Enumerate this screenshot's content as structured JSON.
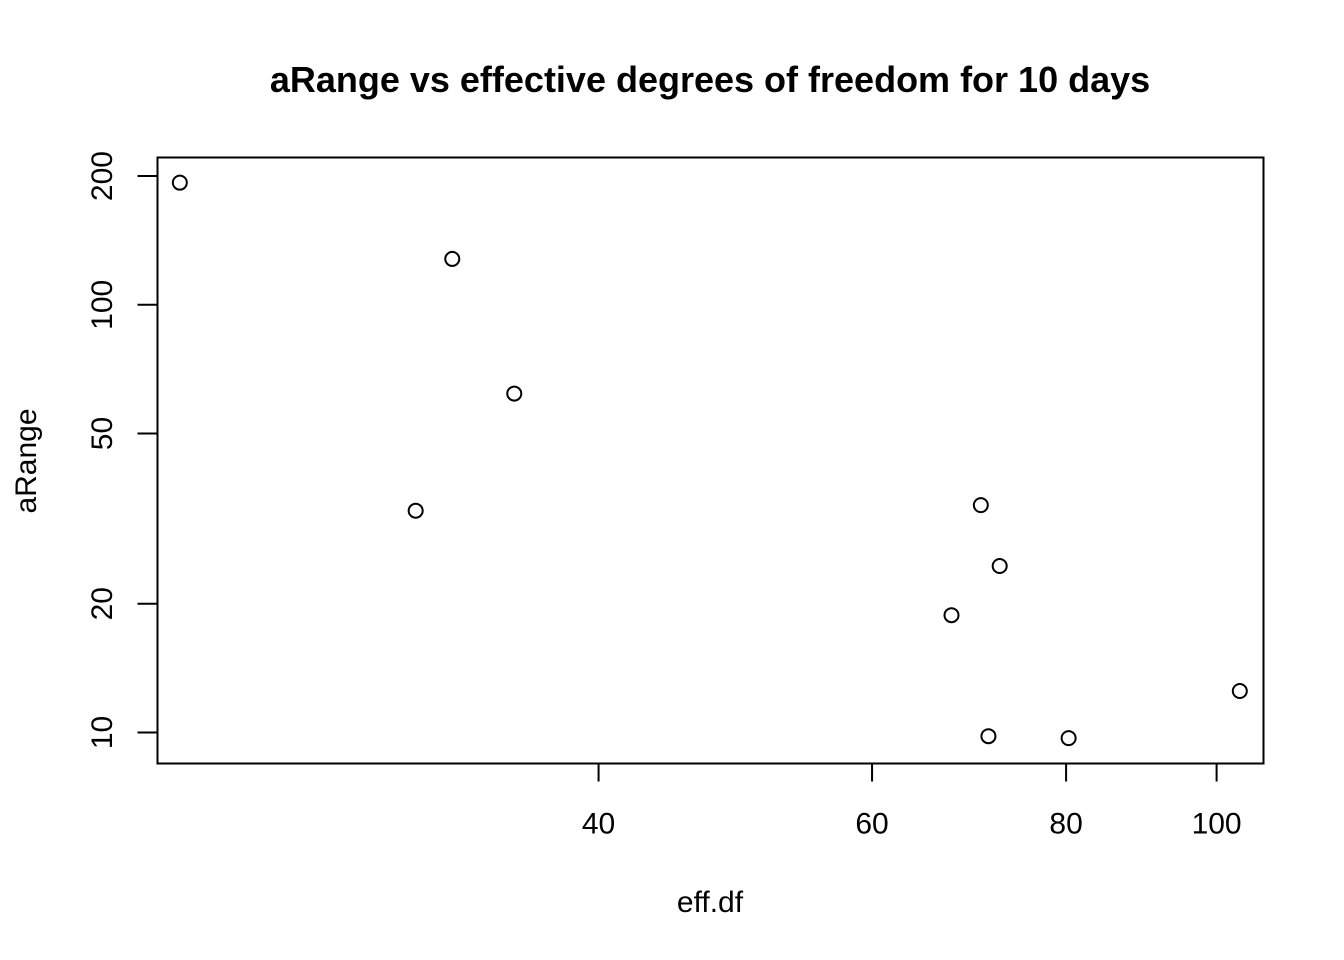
{
  "chart_data": {
    "type": "scatter",
    "title": "aRange vs effective degrees of freedom  for 10 days",
    "xlabel": "eff.df",
    "ylabel": "aRange",
    "x_scale": "log",
    "y_scale": "log",
    "xlim": [
      20.8,
      107.2
    ],
    "ylim": [
      8.46,
      221
    ],
    "x_ticks": [
      40,
      60,
      80,
      100
    ],
    "y_ticks": [
      10,
      20,
      50,
      100,
      200
    ],
    "grid": false,
    "legend": "none",
    "marker": "open-circle",
    "points": [
      {
        "x": 21.5,
        "y": 193
      },
      {
        "x": 32.2,
        "y": 128
      },
      {
        "x": 35.3,
        "y": 62
      },
      {
        "x": 30.5,
        "y": 33
      },
      {
        "x": 67.5,
        "y": 18.8
      },
      {
        "x": 70.5,
        "y": 34
      },
      {
        "x": 72.5,
        "y": 24.5
      },
      {
        "x": 71.3,
        "y": 9.8
      },
      {
        "x": 80.3,
        "y": 9.7
      },
      {
        "x": 103.5,
        "y": 12.5
      }
    ]
  }
}
